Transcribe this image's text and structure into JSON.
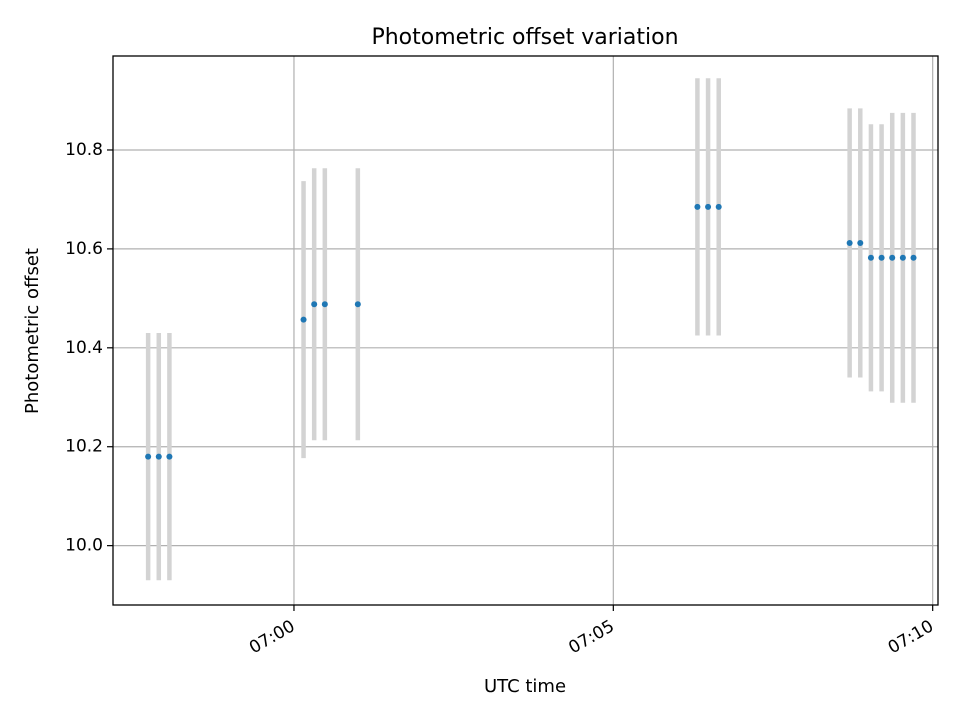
{
  "chart_data": {
    "type": "scatter",
    "title": "Photometric offset variation",
    "xlabel": "UTC time",
    "ylabel": "Photometric offset",
    "x_axis_kind": "time",
    "xlim": [
      "06:57:10",
      "07:10:05"
    ],
    "ylim": [
      9.88,
      10.99
    ],
    "x_ticks": [
      "07:00",
      "07:05",
      "07:10"
    ],
    "x_tick_values": [
      "07:00:00",
      "07:05:00",
      "07:10:00"
    ],
    "y_ticks": [
      "10.0",
      "10.2",
      "10.4",
      "10.6",
      "10.8"
    ],
    "y_tick_values": [
      10.0,
      10.2,
      10.4,
      10.6,
      10.8
    ],
    "grid": true,
    "marker_color": "#1f77b4",
    "errorbar_color": "#d3d3d3",
    "series": [
      {
        "points": [
          {
            "t": "06:57:43",
            "y": 10.18,
            "err": 0.25
          },
          {
            "t": "06:57:53",
            "y": 10.18,
            "err": 0.25
          },
          {
            "t": "06:58:03",
            "y": 10.18,
            "err": 0.25
          },
          {
            "t": "07:00:09",
            "y": 10.457,
            "err": 0.28
          },
          {
            "t": "07:00:19",
            "y": 10.488,
            "err": 0.275
          },
          {
            "t": "07:00:29",
            "y": 10.488,
            "err": 0.275
          },
          {
            "t": "07:01:00",
            "y": 10.488,
            "err": 0.275
          },
          {
            "t": "07:06:19",
            "y": 10.685,
            "err": 0.26
          },
          {
            "t": "07:06:29",
            "y": 10.685,
            "err": 0.26
          },
          {
            "t": "07:06:39",
            "y": 10.685,
            "err": 0.26
          },
          {
            "t": "07:08:42",
            "y": 10.612,
            "err": 0.272
          },
          {
            "t": "07:08:52",
            "y": 10.612,
            "err": 0.272
          },
          {
            "t": "07:09:02",
            "y": 10.582,
            "err": 0.27
          },
          {
            "t": "07:09:12",
            "y": 10.582,
            "err": 0.27
          },
          {
            "t": "07:09:22",
            "y": 10.582,
            "err": 0.293
          },
          {
            "t": "07:09:32",
            "y": 10.582,
            "err": 0.293
          },
          {
            "t": "07:09:42",
            "y": 10.582,
            "err": 0.293
          }
        ]
      }
    ]
  }
}
